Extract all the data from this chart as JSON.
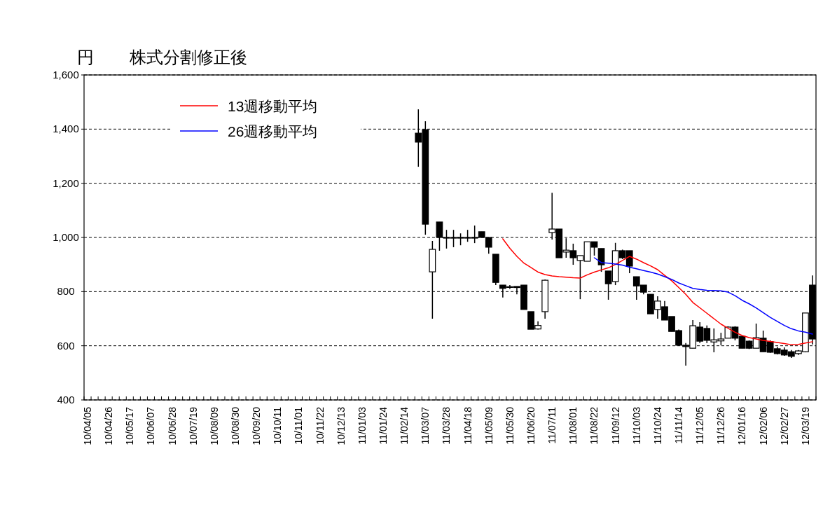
{
  "chart_data": {
    "type": "candlestick",
    "title": "株式分割修正後",
    "ylabel": "円",
    "categories": [
      "10/04/05",
      null,
      null,
      "10/04/26",
      null,
      null,
      "10/05/17",
      null,
      null,
      "10/06/07",
      null,
      null,
      "10/06/28",
      null,
      null,
      "10/07/19",
      null,
      null,
      "10/08/09",
      null,
      null,
      "10/08/30",
      null,
      null,
      "10/09/20",
      null,
      null,
      "10/10/11",
      null,
      null,
      "10/11/01",
      null,
      null,
      "10/11/22",
      null,
      null,
      "10/12/13",
      null,
      null,
      "11/01/03",
      null,
      null,
      "11/01/24",
      null,
      null,
      "11/02/14",
      null,
      null,
      "11/03/07",
      null,
      null,
      "11/03/28",
      null,
      null,
      "11/04/18",
      null,
      null,
      "11/05/09",
      null,
      null,
      "11/05/30",
      null,
      null,
      "11/06/20",
      null,
      null,
      "11/07/11",
      null,
      null,
      "11/08/01",
      null,
      null,
      "11/08/22",
      null,
      null,
      "11/09/12",
      null,
      null,
      "11/10/03",
      null,
      null,
      "11/10/24",
      null,
      null,
      "11/11/14",
      null,
      null,
      "11/12/05",
      null,
      null,
      "11/12/26",
      null,
      null,
      "12/01/16",
      null,
      null,
      "12/02/06",
      null,
      null,
      "12/02/27",
      null,
      null,
      "12/03/19",
      null
    ],
    "ohlc": [
      null,
      null,
      null,
      null,
      null,
      null,
      null,
      null,
      null,
      null,
      null,
      null,
      null,
      null,
      null,
      null,
      null,
      null,
      null,
      null,
      null,
      null,
      null,
      null,
      null,
      null,
      null,
      null,
      null,
      null,
      null,
      null,
      null,
      null,
      null,
      null,
      null,
      null,
      null,
      null,
      null,
      null,
      null,
      null,
      null,
      null,
      null,
      [
        1385,
        1473,
        1261,
        1352
      ],
      [
        1398,
        1429,
        1010,
        1049
      ],
      [
        873,
        987,
        700,
        956
      ],
      [
        1057,
        1057,
        951,
        1000
      ],
      [
        1000,
        1028,
        959,
        1000
      ],
      [
        1000,
        1028,
        964,
        1000
      ],
      [
        1000,
        1015,
        971,
        1000
      ],
      [
        1000,
        1028,
        984,
        1000
      ],
      [
        1000,
        1044,
        979,
        1000
      ],
      [
        1021,
        1021,
        1000,
        1000
      ],
      [
        1000,
        1000,
        940,
        964
      ],
      [
        938,
        938,
        824,
        834
      ],
      [
        824,
        824,
        778,
        812
      ],
      [
        818,
        824,
        810,
        818
      ],
      [
        819,
        819,
        790,
        815
      ],
      [
        824,
        824,
        734,
        734
      ],
      [
        726,
        726,
        661,
        661
      ],
      [
        662,
        690,
        660,
        675
      ],
      [
        726,
        845,
        700,
        842
      ],
      [
        1018,
        1165,
        992,
        1031
      ],
      [
        1031,
        1031,
        925,
        925
      ],
      [
        946,
        997,
        925,
        953
      ],
      [
        951,
        977,
        899,
        925
      ],
      [
        915,
        933,
        772,
        933
      ],
      [
        912,
        984,
        912,
        984
      ],
      [
        984,
        984,
        933,
        964
      ],
      [
        959,
        959,
        873,
        899
      ],
      [
        876,
        876,
        770,
        829
      ],
      [
        837,
        980,
        824,
        951
      ],
      [
        951,
        955,
        920,
        925
      ],
      [
        951,
        951,
        868,
        894
      ],
      [
        855,
        855,
        770,
        821
      ],
      [
        824,
        824,
        790,
        798
      ],
      [
        790,
        790,
        718,
        718
      ],
      [
        734,
        783,
        700,
        765
      ],
      [
        744,
        765,
        695,
        695
      ],
      [
        708,
        708,
        653,
        653
      ],
      [
        656,
        660,
        600,
        602
      ],
      [
        602,
        610,
        527,
        597
      ],
      [
        591,
        695,
        591,
        674
      ],
      [
        669,
        687,
        610,
        617
      ],
      [
        664,
        675,
        610,
        620
      ],
      [
        614,
        664,
        576,
        622
      ],
      [
        618,
        648,
        602,
        625
      ],
      [
        628,
        672,
        628,
        669
      ],
      [
        669,
        672,
        620,
        628
      ],
      [
        635,
        635,
        591,
        591
      ],
      [
        617,
        620,
        588,
        591
      ],
      [
        591,
        682,
        591,
        630
      ],
      [
        628,
        656,
        578,
        578
      ],
      [
        615,
        620,
        574,
        576
      ],
      [
        589,
        596,
        568,
        571
      ],
      [
        584,
        594,
        563,
        566
      ],
      [
        578,
        584,
        555,
        561
      ],
      [
        571,
        584,
        566,
        581
      ],
      [
        578,
        721,
        576,
        721
      ],
      [
        824,
        860,
        605,
        625
      ]
    ],
    "series": [
      {
        "name": "13週移動平均",
        "type": "line",
        "color": "#ff0000",
        "values": [
          null,
          null,
          null,
          null,
          null,
          null,
          null,
          null,
          null,
          null,
          null,
          null,
          null,
          null,
          null,
          null,
          null,
          null,
          null,
          null,
          null,
          null,
          null,
          null,
          null,
          null,
          null,
          null,
          null,
          null,
          null,
          null,
          null,
          null,
          null,
          null,
          null,
          null,
          null,
          null,
          null,
          null,
          null,
          null,
          null,
          null,
          null,
          null,
          null,
          null,
          null,
          null,
          null,
          null,
          null,
          null,
          null,
          null,
          null,
          995,
          960,
          930,
          905,
          889,
          872,
          863,
          858,
          855,
          853,
          851,
          850,
          862,
          872,
          880,
          888,
          900,
          915,
          930,
          920,
          907,
          895,
          881,
          860,
          840,
          815,
          790,
          760,
          740,
          720,
          700,
          680,
          665,
          650,
          638,
          630,
          625,
          620,
          616,
          612,
          608,
          604,
          605,
          610,
          615
        ]
      },
      {
        "name": "26週移動平均",
        "type": "line",
        "color": "#0000ff",
        "values": [
          null,
          null,
          null,
          null,
          null,
          null,
          null,
          null,
          null,
          null,
          null,
          null,
          null,
          null,
          null,
          null,
          null,
          null,
          null,
          null,
          null,
          null,
          null,
          null,
          null,
          null,
          null,
          null,
          null,
          null,
          null,
          null,
          null,
          null,
          null,
          null,
          null,
          null,
          null,
          null,
          null,
          null,
          null,
          null,
          null,
          null,
          null,
          null,
          null,
          null,
          null,
          null,
          null,
          null,
          null,
          null,
          null,
          null,
          null,
          null,
          null,
          null,
          null,
          null,
          null,
          null,
          null,
          null,
          null,
          null,
          null,
          null,
          925,
          907,
          905,
          902,
          898,
          890,
          884,
          878,
          872,
          865,
          855,
          845,
          832,
          822,
          812,
          808,
          805,
          804,
          803,
          798,
          785,
          768,
          755,
          740,
          722,
          705,
          690,
          675,
          663,
          655,
          650,
          643
        ]
      }
    ],
    "ylim": [
      400,
      1600
    ],
    "yticks": [
      400,
      {
        "value": 600,
        "label": "600"
      },
      {
        "value": 800,
        "label": "800"
      },
      {
        "value": 1000,
        "label": "1,000"
      },
      {
        "value": 1200,
        "label": "1,200"
      },
      {
        "value": 1400,
        "label": "1,400"
      },
      {
        "value": 1600,
        "label": "1,600"
      }
    ],
    "grid": "y",
    "legend": "top left"
  }
}
